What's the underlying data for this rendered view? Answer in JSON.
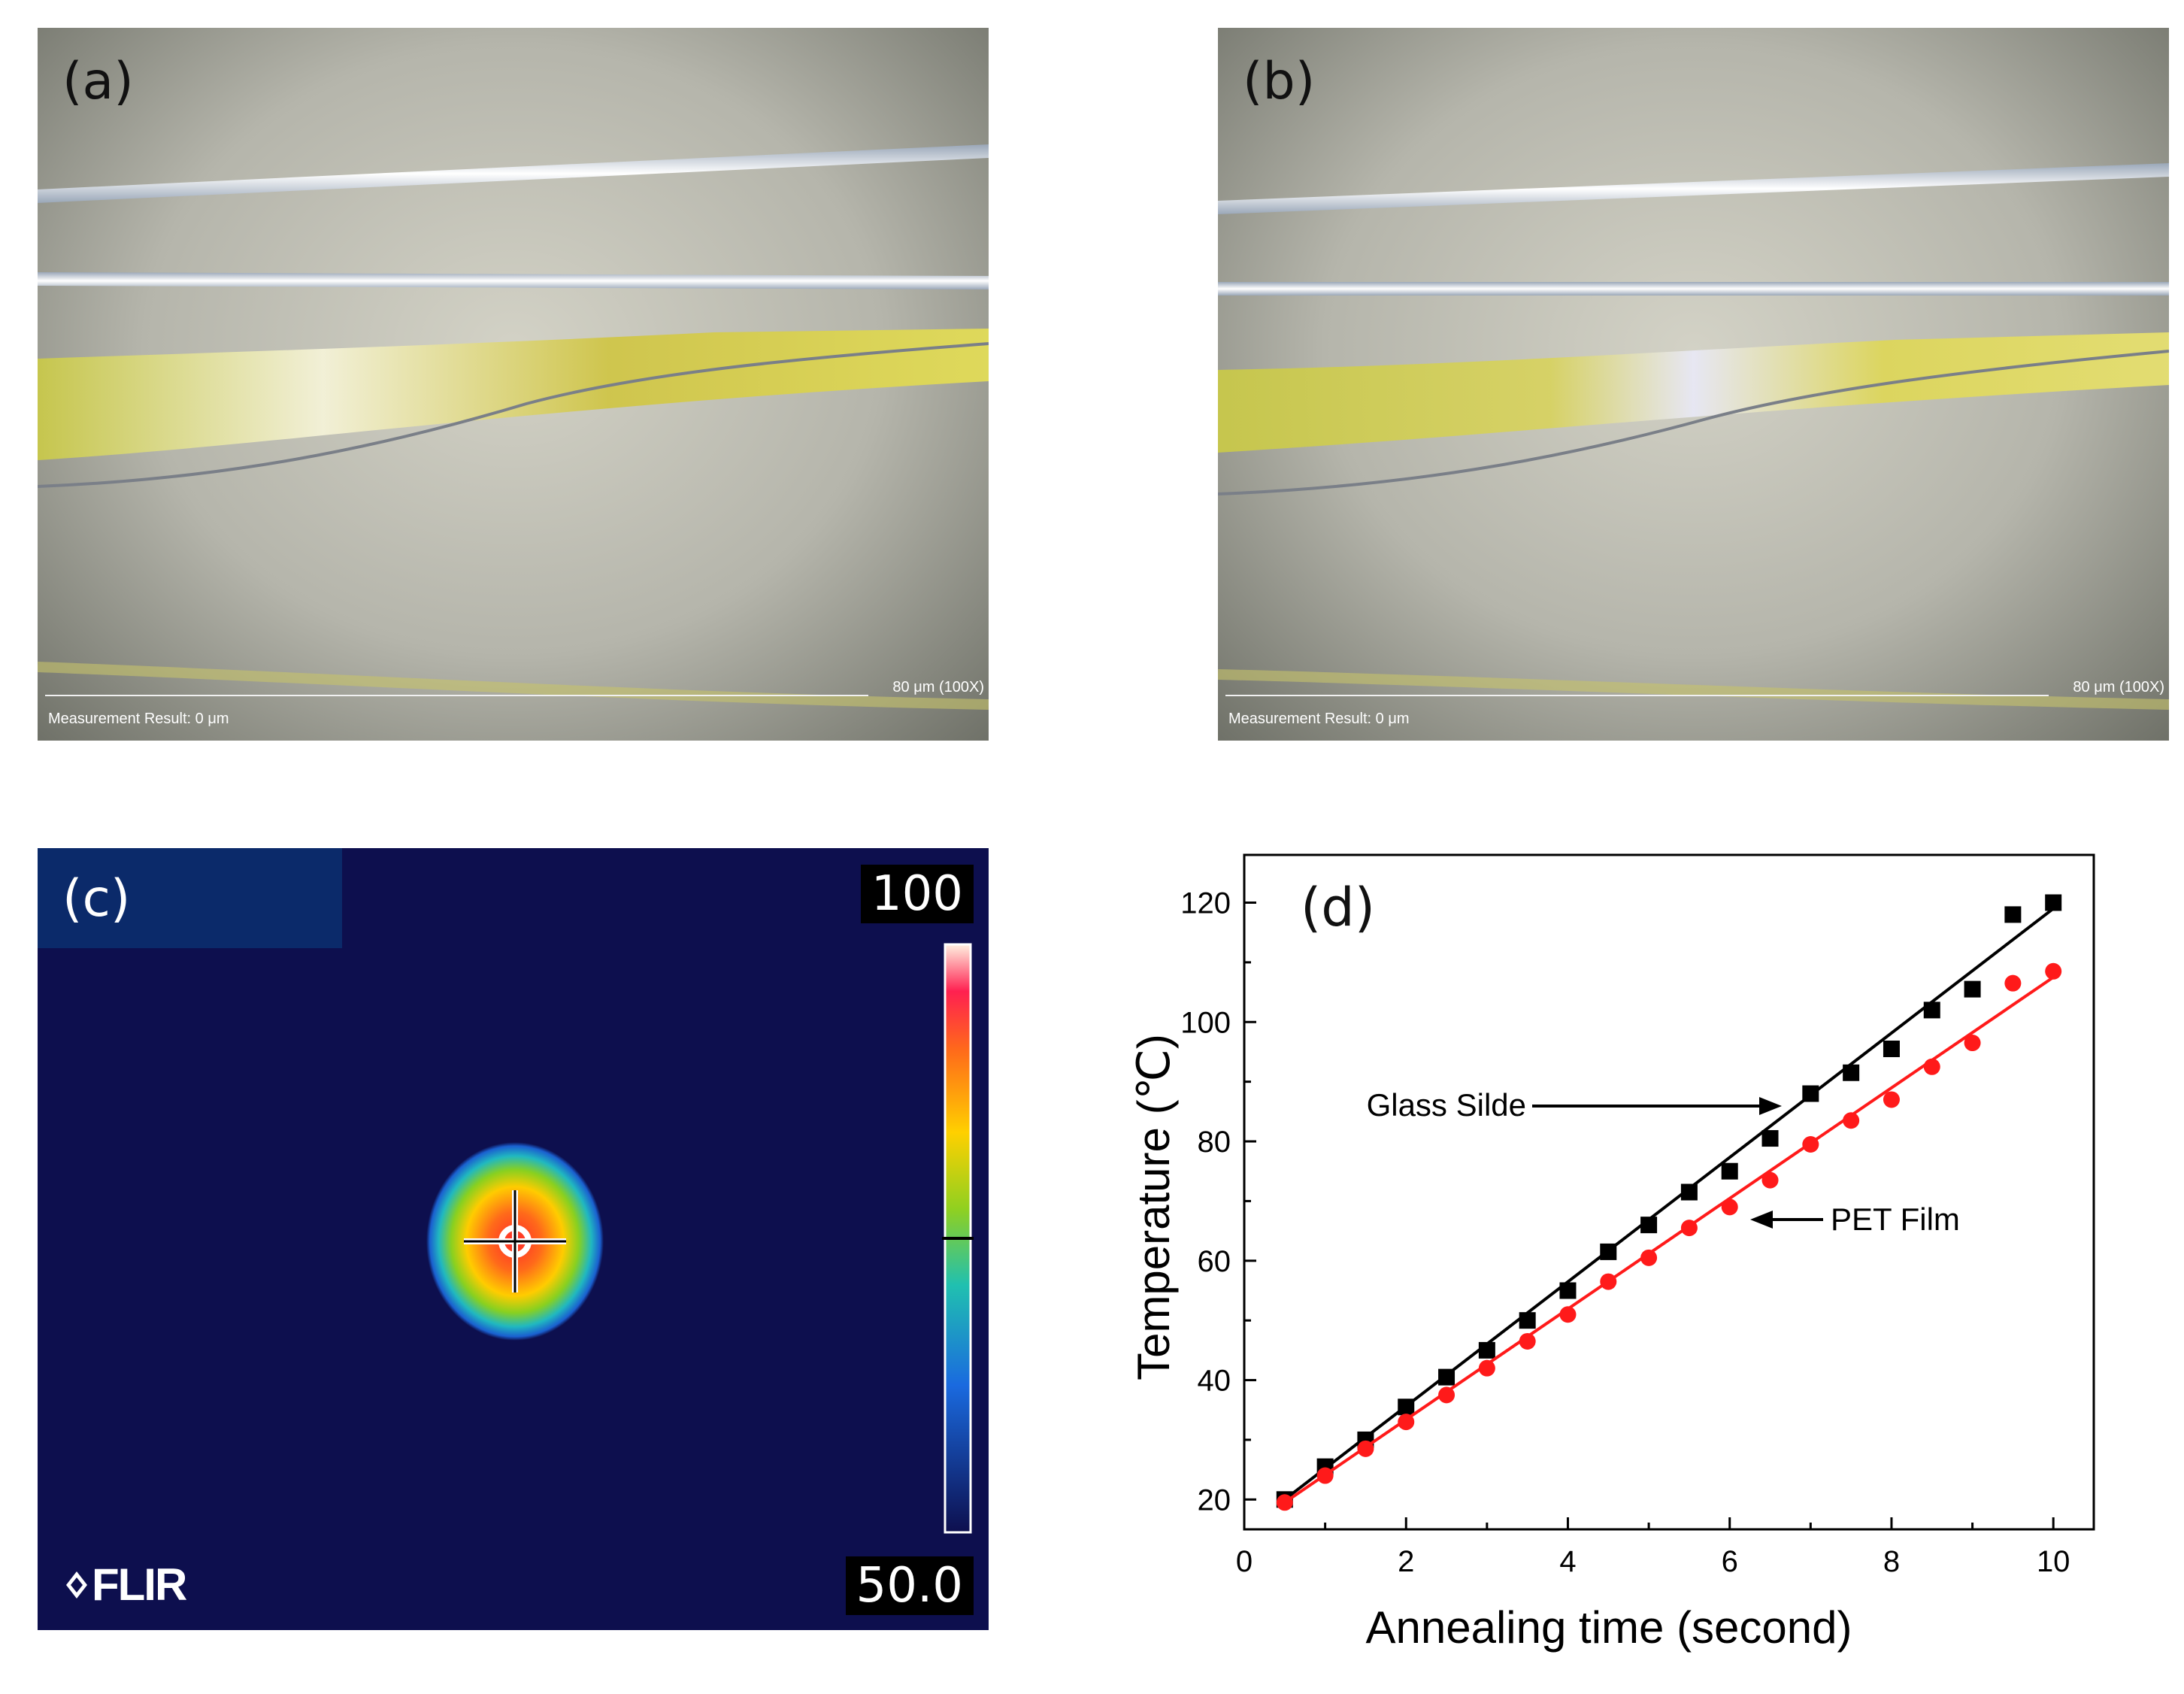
{
  "panels": {
    "a": {
      "label": "(a)",
      "scale": "80 μm (100X)",
      "measurement": "Measurement Result: 0 μm"
    },
    "b": {
      "label": "(b)",
      "scale": "80 μm (100X)",
      "measurement": "Measurement Result: 0 μm"
    },
    "c": {
      "label": "(c)",
      "max": "100",
      "min": "50.0",
      "logo": "FLIR"
    },
    "d": {
      "label": "(d)"
    }
  },
  "colors": {
    "glass": "#000000",
    "pet": "#ff1a1a",
    "thermal_bg": "#0d0f4e"
  },
  "chart_data": {
    "type": "scatter",
    "title": "",
    "xlabel": "Annealing time (second)",
    "ylabel": "Temperature (℃)",
    "xlim": [
      0,
      10.5
    ],
    "ylim": [
      15,
      128
    ],
    "xticks": [
      0,
      2,
      4,
      6,
      8,
      10
    ],
    "yticks": [
      20,
      40,
      60,
      80,
      100,
      120
    ],
    "series": [
      {
        "name": "Glass Silde",
        "marker": "square",
        "x": [
          0.5,
          1,
          1.5,
          2,
          2.5,
          3,
          3.5,
          4,
          4.5,
          5,
          5.5,
          6,
          6.5,
          7,
          7.5,
          8,
          8.5,
          9,
          9.5,
          10
        ],
        "y": [
          20,
          25.5,
          30,
          35.5,
          40.5,
          45,
          50,
          55,
          61.5,
          66,
          71.5,
          75,
          80.5,
          88,
          91.5,
          95.5,
          102,
          105.5,
          118,
          120
        ],
        "fit": [
          [
            0.5,
            20
          ],
          [
            10,
            119
          ]
        ]
      },
      {
        "name": "PET Film",
        "marker": "circle",
        "x": [
          0.5,
          1,
          1.5,
          2,
          2.5,
          3,
          3.5,
          4,
          4.5,
          5,
          5.5,
          6,
          6.5,
          7,
          7.5,
          8,
          8.5,
          9,
          9.5,
          10
        ],
        "y": [
          19.5,
          24,
          28.5,
          33,
          37.5,
          42,
          46.5,
          51,
          56.5,
          60.5,
          65.5,
          69,
          73.5,
          79.5,
          83.5,
          87,
          92.5,
          96.5,
          106.5,
          108.5
        ],
        "fit": [
          [
            0.5,
            19.5
          ],
          [
            10,
            107.5
          ]
        ]
      }
    ],
    "annotations": [
      {
        "text": "Glass Silde",
        "points_to": "Glass Silde"
      },
      {
        "text": "PET Film",
        "points_to": "PET Film"
      }
    ]
  }
}
